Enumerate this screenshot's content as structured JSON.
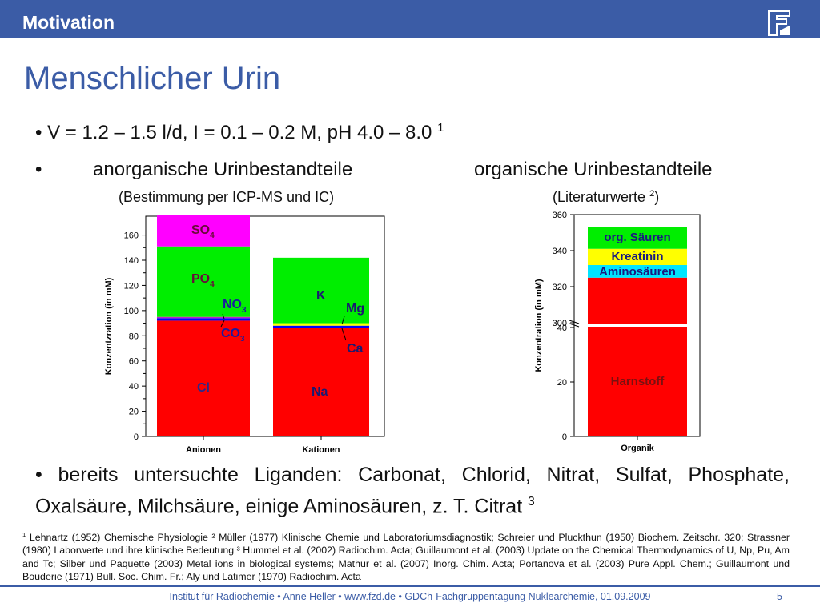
{
  "header": {
    "section": "Motivation",
    "logo_text": "FZD"
  },
  "title": "Menschlicher Urin",
  "bullets": {
    "line1": "V = 1.2 – 1.5 l/d, I = 0.1 – 0.2 M, pH 4.0 – 8.0",
    "line1_ref": "1",
    "inorganic_heading": "anorganische Urinbestandteile",
    "organic_heading": "organische Urinbestandteile",
    "inorganic_sub": "(Bestimmung per ICP-MS und IC)",
    "organic_sub": "(Literaturwerte",
    "organic_sub_ref": "2",
    "organic_sub_end": ")",
    "ligands": "bereits untersuchte Liganden: Carbonat, Chlorid, Nitrat, Sulfat, Phosphate, Oxalsäure, Milchsäure, einige Aminosäuren, z. T. Citrat",
    "ligands_ref": "3"
  },
  "references": {
    "r1_mark": "1",
    "r1": "Lehnartz (1952) Chemische Physiologie ² Müller (1977) Klinische Chemie und Laboratoriumsdiagnostik; Schreier und Pluckthun (1950) Biochem. Zeitschr. 320; Strassner (1980) Laborwerte und ihre klinische Bedeutung ³ Hummel et al. (2002) Radiochim. Acta; Guillaumont et al. (2003) Update on the Chemical Thermodynamics of U, Np, Pu, Am and Tc; Silber und Paquette (2003) Metal ions in biological systems; Mathur et al. (2007) Inorg. Chim. Acta; Portanova et al. (2003) Pure Appl. Chem.; Guillaumont und Bouderie (1971) Bull. Soc. Chim. Fr.; Aly und Latimer (1970) Radiochim. Acta"
  },
  "footer": {
    "text": "Institut für Radiochemie • Anne Heller • www.fzd.de • GDCh-Fachgruppentagung Nuklearchemie, 01.09.2009",
    "page": "5"
  },
  "colors": {
    "brand": "#3b5ca6",
    "Cl": "#ff0000",
    "CO3": "#0000ff",
    "NO3": "#c020c0",
    "PO4": "#00ee00",
    "SO4": "#ff00ff",
    "Na": "#ff0000",
    "Ca": "#0000ff",
    "Mg": "#ffff00",
    "K": "#00ee00",
    "Harnstoff": "#ff0000",
    "Aminosaeuren": "#00e5ff",
    "Kreatinin": "#ffff00",
    "orgSaeuren": "#00ee00"
  },
  "chart_data": [
    {
      "type": "bar",
      "stacked": true,
      "categories": [
        "Anionen",
        "Kationen"
      ],
      "ylabel": "Konzentzration (in mM)",
      "ylim": [
        0,
        175
      ],
      "yticks": [
        "0",
        "20",
        "40",
        "60",
        "80",
        "100",
        "120",
        "140",
        "160"
      ],
      "series": [
        {
          "name": "Cl",
          "values": [
            92,
            86
          ]
        },
        {
          "name": "CO3",
          "values": [
            2,
            0
          ]
        },
        {
          "name": "NO3",
          "values": [
            1,
            0
          ]
        },
        {
          "name": "PO4",
          "values": [
            56,
            0
          ]
        },
        {
          "name": "SO4",
          "values": [
            25,
            0
          ]
        },
        {
          "name": "Na",
          "values": [
            0,
            0
          ]
        },
        {
          "name": "Ca",
          "values": [
            0,
            2
          ]
        },
        {
          "name": "Mg",
          "values": [
            0,
            2
          ]
        },
        {
          "name": "K",
          "values": [
            0,
            52
          ]
        }
      ],
      "labels": [
        {
          "text": "SO",
          "sub": "4"
        },
        {
          "text": "PO",
          "sub": "4"
        },
        {
          "text": "NO",
          "sub": "3"
        },
        {
          "text": "CO",
          "sub": "3"
        },
        {
          "text": "Cl",
          "sub": ""
        },
        {
          "text": "K",
          "sub": ""
        },
        {
          "text": "Mg",
          "sub": ""
        },
        {
          "text": "Ca",
          "sub": ""
        },
        {
          "text": "Na",
          "sub": ""
        }
      ]
    },
    {
      "type": "bar",
      "stacked": true,
      "broken_axis": true,
      "categories": [
        "Organik"
      ],
      "ylabel": "Konzentration (in mM)",
      "yticks_lower": [
        "0",
        "20",
        "40"
      ],
      "yticks_upper": [
        "300",
        "320",
        "340",
        "360"
      ],
      "series": [
        {
          "name": "Harnstoff",
          "values": [
            325
          ]
        },
        {
          "name": "Aminosäuren",
          "values": [
            7
          ]
        },
        {
          "name": "Kreatinin",
          "values": [
            9
          ]
        },
        {
          "name": "org. Säuren",
          "values": [
            12
          ]
        }
      ]
    }
  ]
}
